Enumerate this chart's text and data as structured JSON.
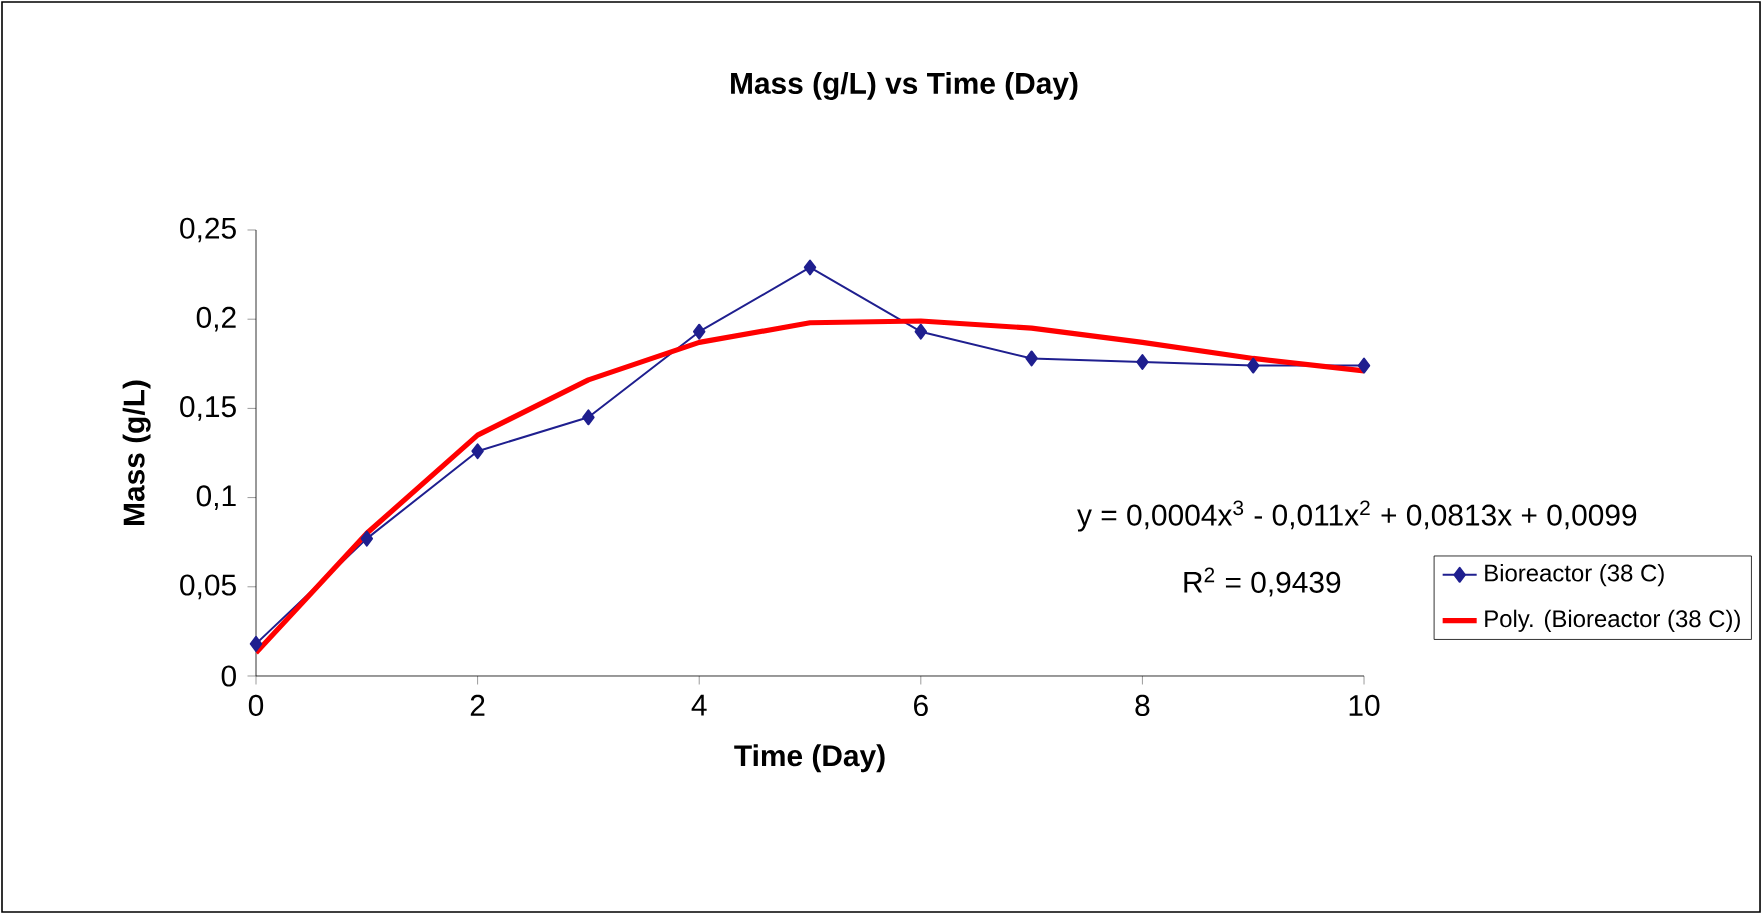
{
  "chart_data": {
    "type": "line",
    "title": "Mass (g/L) vs Time (Day)",
    "xlabel": "Time (Day)",
    "ylabel": "Mass (g/L)",
    "x": [
      0,
      1,
      2,
      3,
      4,
      5,
      6,
      7,
      8,
      9,
      10
    ],
    "series": [
      {
        "name": "Bioreactor (38 C)",
        "color": "#1f1f8f",
        "marker": "diamond",
        "line_style": "solid",
        "values": [
          0.018,
          0.077,
          0.126,
          0.145,
          0.193,
          0.229,
          0.193,
          0.178,
          0.176,
          0.174,
          0.174
        ]
      },
      {
        "name": "Poly. (Bioreactor (38 C))",
        "color": "#ff0000",
        "marker": "none",
        "line_style": "solid",
        "values": [
          0.013,
          0.08,
          0.135,
          0.166,
          0.187,
          0.198,
          0.199,
          0.195,
          0.187,
          0.178,
          0.171
        ]
      }
    ],
    "xlim": [
      0,
      10
    ],
    "xticks": [
      0,
      2,
      4,
      6,
      8,
      10
    ],
    "ylim": [
      0,
      0.25
    ],
    "yticks": [
      0,
      {
        "value": 0.05,
        "label": "0,05"
      },
      {
        "value": 0.1,
        "label": "0,1"
      },
      {
        "value": 0.15,
        "label": "0,15"
      },
      {
        "value": 0.2,
        "label": "0,2"
      },
      {
        "value": 0.25,
        "label": "0,25"
      }
    ],
    "annotations": [
      "y = 0,0004x$^{3}$ - 0,011x$^{2}$ + 0,0813x + 0,0099",
      "R$^{2}$ = 0,9439"
    ],
    "grid": false,
    "legend": "right"
  }
}
